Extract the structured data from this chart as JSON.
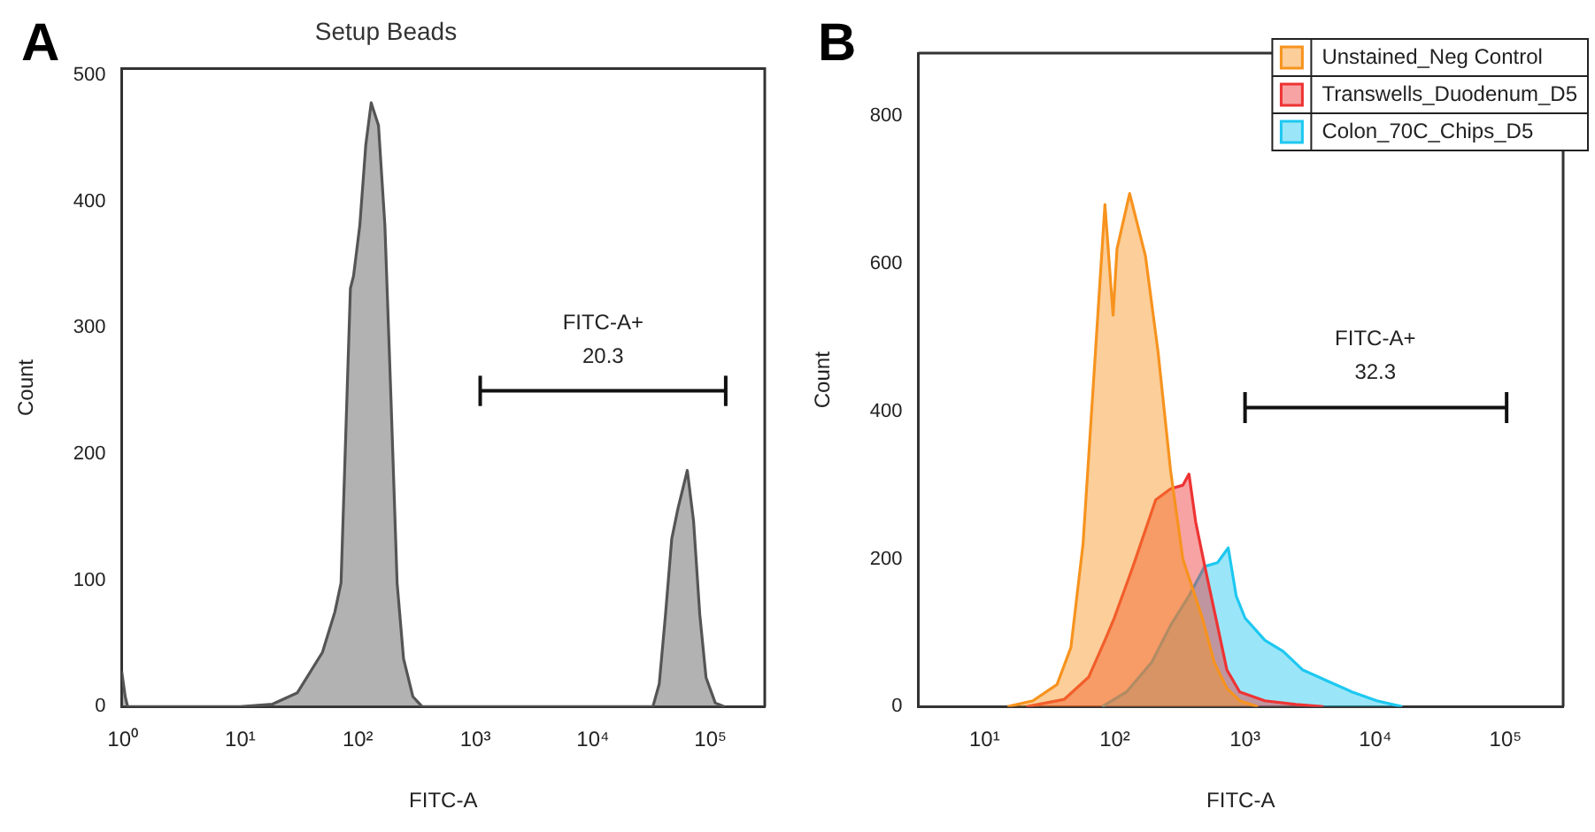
{
  "chart_data": [
    {
      "type": "area",
      "title": "Setup Beads",
      "annotations": [
        "A",
        {
          "text": "FITC-A+\n20.3",
          "x": 12200,
          "y": 250
        }
      ],
      "xlabel": "FITC-A",
      "ylabel": "Count",
      "log": "x",
      "xlim": [
        0.98,
        290000
      ],
      "xticks": [
        {
          "value": 1,
          "label": "10⁰"
        },
        {
          "value": 10,
          "label": "10¹"
        },
        {
          "value": 100,
          "label": "10²"
        },
        {
          "value": 1000,
          "label": "10³"
        },
        {
          "value": 10000,
          "label": "10⁴"
        },
        {
          "value": 100000,
          "label": "10⁵"
        }
      ],
      "ylim": [
        0,
        505
      ],
      "yticks": [
        0,
        100,
        200,
        300,
        400,
        500
      ],
      "series": [
        {
          "color": "#555555",
          "x": [
            0.98,
            1.05,
            1.1,
            10,
            18.8,
            30.6,
            50,
            63.8,
            72,
            86.5,
            92,
            104,
            117,
            130,
            150,
            170,
            191,
            216,
            245,
            294,
            353,
            32400,
            36700,
            41500,
            46900,
            53000,
            63600,
            71900,
            81200,
            91800,
            110000,
            132000
          ],
          "values": [
            28,
            8,
            0,
            0,
            2,
            11,
            43,
            75,
            98,
            331,
            341,
            381,
            445,
            478,
            460,
            381,
            247,
            98,
            38,
            8,
            0,
            0,
            18,
            73,
            133,
            157,
            187,
            147,
            73,
            23,
            3,
            0
          ]
        },
        {
          "type": "line",
          "color": "#111111",
          "x": [
            1100,
            135000
          ],
          "values": [
            250,
            250
          ],
          "errors": [
            12,
            12
          ]
        }
      ]
    },
    {
      "type": "area",
      "annotations": [
        "B",
        {
          "text": "FITC-A+\n32.3",
          "x": 10000,
          "y": 405
        }
      ],
      "xlabel": "FITC-A",
      "ylabel": "Count",
      "log": "x",
      "xlim": [
        3.1,
        277000
      ],
      "xticks": [
        {
          "value": 10,
          "label": "10¹"
        },
        {
          "value": 100,
          "label": "10²"
        },
        {
          "value": 1000,
          "label": "10³"
        },
        {
          "value": 10000,
          "label": "10⁴"
        },
        {
          "value": 100000,
          "label": "10⁵"
        }
      ],
      "ylim": [
        0,
        885
      ],
      "yticks": [
        0,
        200,
        400,
        600,
        800
      ],
      "legend": "top right",
      "series": [
        {
          "name": "Unstained_Neg Control",
          "color": "#f7931e",
          "x": [
            15,
            23.5,
            36,
            46,
            57,
            71,
            84,
            97,
            104,
            130,
            172,
            215,
            268,
            333,
            470,
            580,
            725,
            910,
            1260
          ],
          "values": [
            0,
            8,
            30,
            80,
            220,
            480,
            680,
            530,
            620,
            695,
            610,
            480,
            320,
            200,
            120,
            60,
            25,
            8,
            0
          ]
        },
        {
          "name": "Transwells_Duodenum_D5",
          "color": "#ee3333",
          "x": [
            21,
            41,
            63,
            84,
            99,
            138,
            206,
            268,
            334,
            371,
            418,
            491,
            614,
            725,
            910,
            1420,
            2460,
            4000
          ],
          "values": [
            0,
            10,
            40,
            90,
            120,
            190,
            280,
            295,
            300,
            315,
            250,
            190,
            110,
            50,
            20,
            8,
            3,
            0
          ]
        },
        {
          "name": "Colon_70C_Chips_D5",
          "color": "#1ec8f0",
          "x": [
            80,
            123,
            192,
            268,
            371,
            491,
            614,
            743,
            855,
            1000,
            1420,
            1960,
            2760,
            4270,
            6620,
            10300,
            16100
          ],
          "values": [
            0,
            20,
            60,
            110,
            150,
            190,
            195,
            215,
            150,
            120,
            90,
            75,
            50,
            35,
            20,
            8,
            0
          ]
        },
        {
          "type": "line",
          "color": "#111111",
          "x": [
            1000,
            102000
          ],
          "values": [
            405,
            405
          ],
          "errors": [
            21,
            21
          ]
        }
      ]
    }
  ]
}
